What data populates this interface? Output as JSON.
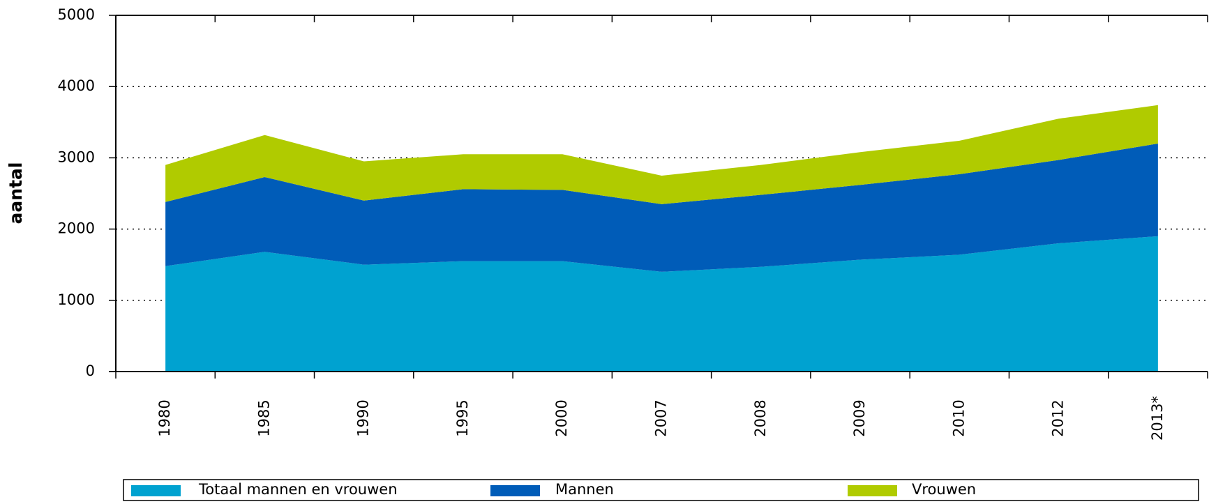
{
  "chart_data": {
    "type": "stacked-area",
    "y_label": "aantal",
    "categories": [
      "1980",
      "1985",
      "1990",
      "1995",
      "2000",
      "2007",
      "2008",
      "2009",
      "2010",
      "2012",
      "2013*"
    ],
    "series": [
      {
        "name": "Totaal mannen en vrouwen",
        "color": "#00a2d0",
        "values": [
          1480,
          1680,
          1500,
          1550,
          1550,
          1400,
          1470,
          1570,
          1640,
          1800,
          1900
        ]
      },
      {
        "name": "Mannen",
        "color": "#005cb8",
        "values": [
          900,
          1050,
          900,
          1010,
          1000,
          950,
          1010,
          1050,
          1130,
          1170,
          1300
        ]
      },
      {
        "name": "Vrouwen",
        "color": "#b0cb00",
        "values": [
          520,
          590,
          550,
          490,
          500,
          400,
          420,
          460,
          470,
          580,
          540
        ]
      }
    ],
    "ylim": [
      0,
      5000
    ],
    "yticks": [
      0,
      1000,
      2000,
      3000,
      4000,
      5000
    ],
    "grid": true
  }
}
